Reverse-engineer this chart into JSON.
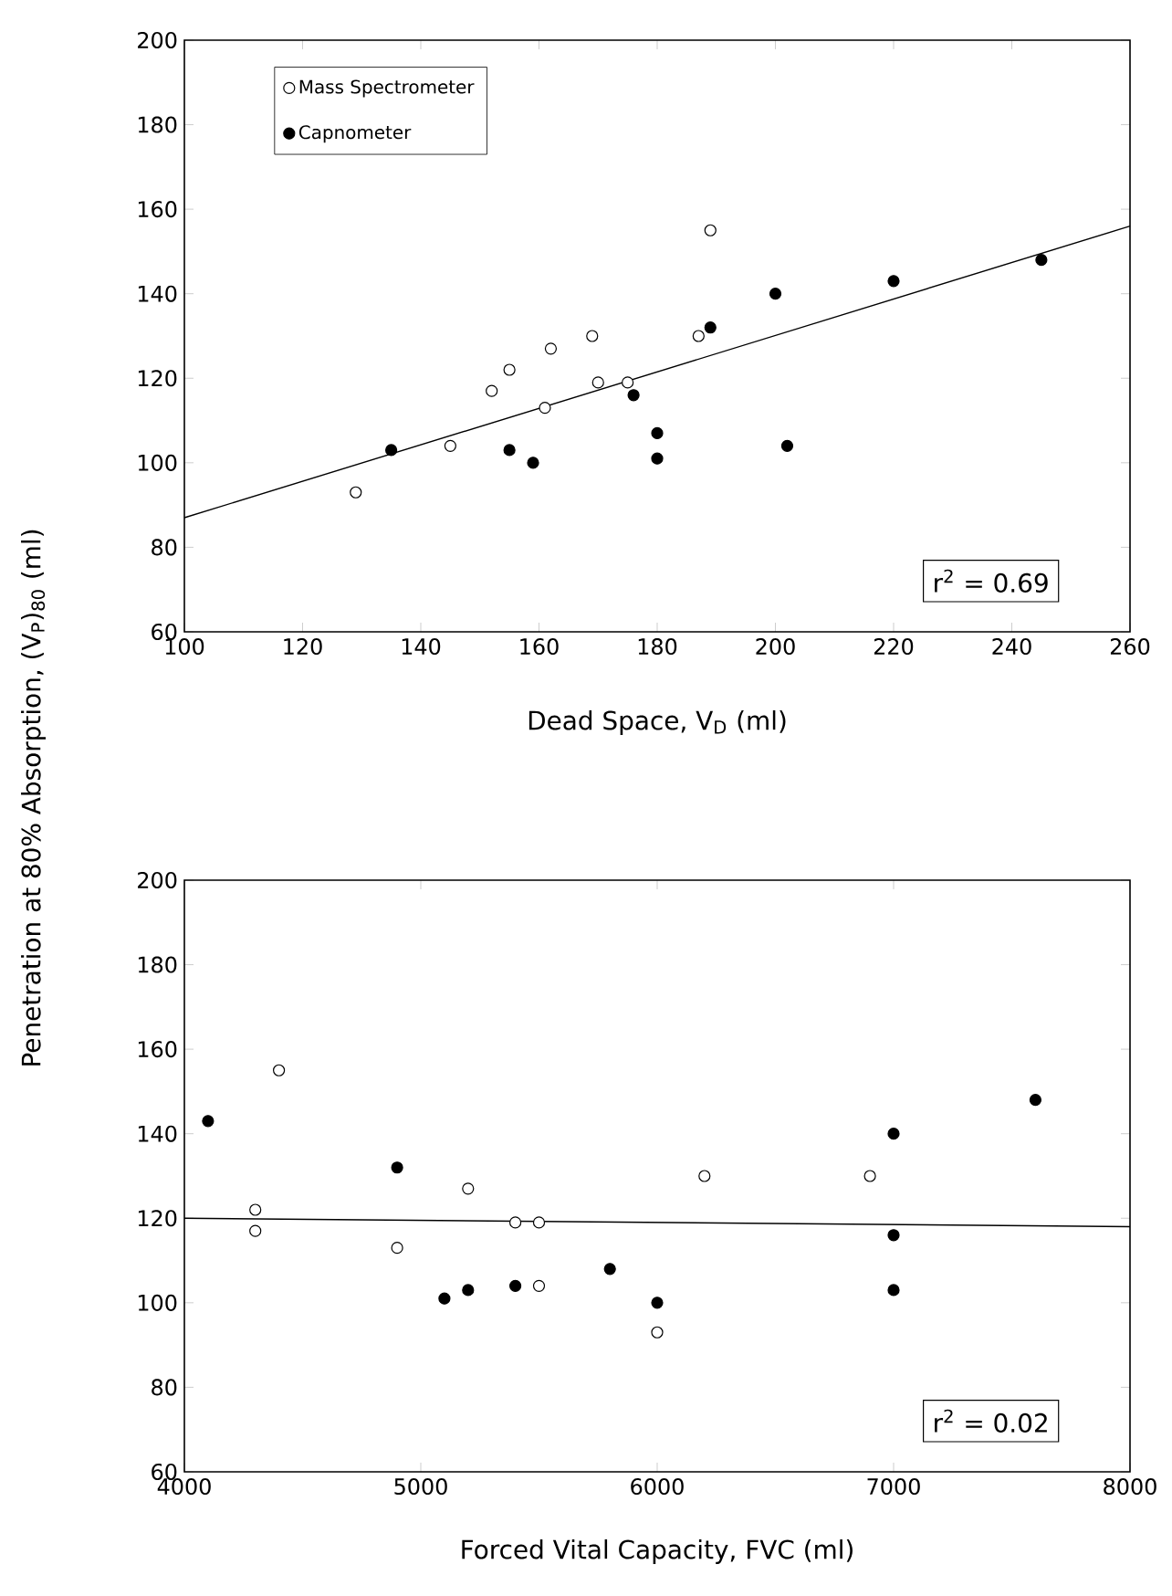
{
  "chart_data": [
    {
      "type": "scatter",
      "xlabel": "Dead Space, V$_{D}$ (ml)",
      "ylabel": "Penetration at 80% Absorption, (V$_{P}$)$_{80}$ (ml)",
      "xlim": [
        100,
        260
      ],
      "ylim": [
        60,
        200
      ],
      "xticks": [
        100,
        120,
        140,
        160,
        180,
        200,
        220,
        240,
        260
      ],
      "yticks": [
        60,
        80,
        100,
        120,
        140,
        160,
        180,
        200
      ],
      "legend": "top left",
      "marker": "circle",
      "annotations": [
        "r$^{2}$ = 0.69"
      ],
      "series": [
        {
          "name": "Mass Spectrometer",
          "color": "#000000",
          "x": [
            129,
            145,
            152,
            155,
            161,
            162,
            169,
            170,
            175,
            187,
            189
          ],
          "values": [
            93,
            104,
            117,
            122,
            113,
            127,
            130,
            119,
            119,
            130,
            155
          ]
        },
        {
          "name": "Capnometer",
          "color": "#000000",
          "x": [
            135,
            155,
            159,
            176,
            180,
            180,
            189,
            200,
            202,
            220,
            245
          ],
          "values": [
            103,
            103,
            100,
            116,
            107,
            101,
            132,
            140,
            104,
            143,
            148
          ]
        },
        {
          "type": "line",
          "color": "#000000",
          "marker": "none",
          "x": [
            100,
            260
          ],
          "values": [
            87,
            156
          ]
        }
      ]
    },
    {
      "type": "scatter",
      "xlabel": "Forced Vital Capacity, FVC (ml)",
      "xlim": [
        4000,
        8000
      ],
      "ylim": [
        60,
        200
      ],
      "xticks": [
        4000,
        5000,
        6000,
        7000,
        8000
      ],
      "yticks": [
        60,
        80,
        100,
        120,
        140,
        160,
        180,
        200
      ],
      "marker": "circle",
      "annotations": [
        "r$^{2}$ = 0.02"
      ],
      "series": [
        {
          "color": "#000000",
          "x": [
            4300,
            4300,
            4400,
            4900,
            5200,
            5400,
            5500,
            5500,
            6000,
            6200,
            6900
          ],
          "values": [
            122,
            117,
            155,
            113,
            127,
            119,
            119,
            104,
            93,
            130,
            130
          ]
        },
        {
          "color": "#000000",
          "x": [
            4100,
            4900,
            5100,
            5200,
            5400,
            5800,
            6000,
            7000,
            7000,
            7000,
            7600
          ],
          "values": [
            143,
            132,
            101,
            103,
            104,
            108,
            100,
            140,
            116,
            103,
            148
          ]
        },
        {
          "type": "line",
          "color": "#000000",
          "marker": "none",
          "x": [
            4000,
            8000
          ],
          "values": [
            120,
            118
          ]
        }
      ]
    }
  ]
}
